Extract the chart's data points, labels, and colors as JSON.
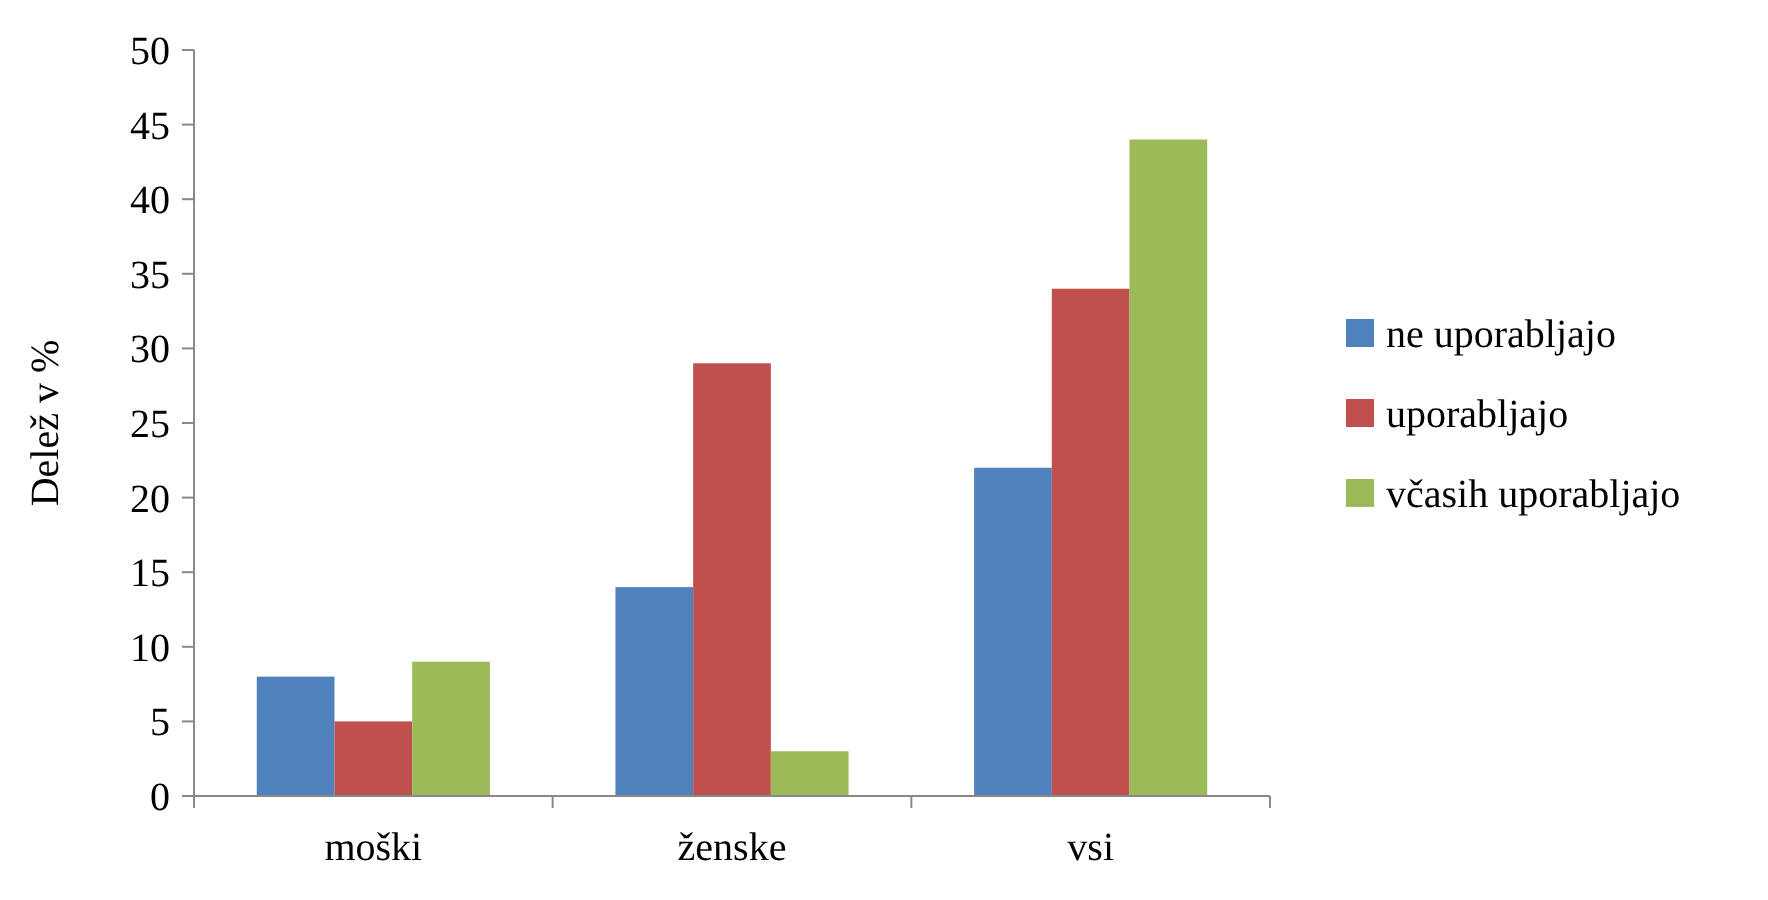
{
  "chart_data": {
    "type": "bar",
    "ylabel": "Delež v %",
    "categories": [
      "moški",
      "ženske",
      "vsi"
    ],
    "series": [
      {
        "name": "ne uporabljajo",
        "color": "#4f81bd",
        "values": [
          8,
          14,
          22
        ]
      },
      {
        "name": "uporabljajo",
        "color": "#c0504d",
        "values": [
          5,
          29,
          34
        ]
      },
      {
        "name": "včasih uporabljajo",
        "color": "#9bbb59",
        "values": [
          9,
          3,
          44
        ]
      }
    ],
    "ylim": [
      0,
      50
    ],
    "yticks": [
      0,
      5,
      10,
      15,
      20,
      25,
      30,
      35,
      40,
      45,
      50
    ],
    "grid": false,
    "legend": "right"
  }
}
